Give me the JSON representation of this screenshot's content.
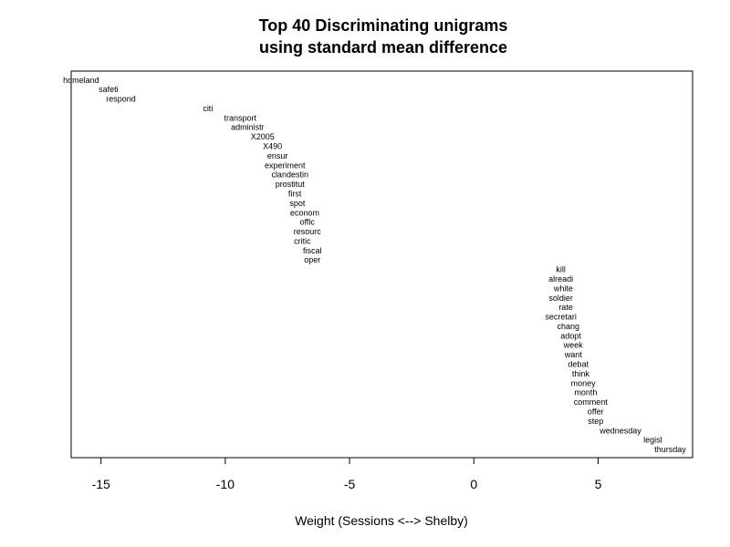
{
  "chart_data": {
    "type": "scatter",
    "title": "Top 40 Discriminating unigrams",
    "subtitle": "using standard mean difference",
    "xlabel": "Weight (Sessions <--> Shelby)",
    "ylabel": "",
    "xlim": [
      -16.2,
      8.8
    ],
    "ylim": [
      0.2,
      41.0
    ],
    "x_ticks": [
      -15,
      -10,
      -5,
      0,
      5
    ],
    "x_tick_labels": [
      "-15",
      "-10",
      "-5",
      "0",
      "5"
    ],
    "grid": false,
    "legend": "none",
    "points": [
      {
        "label": "homeland",
        "x": -15.8,
        "y": 40
      },
      {
        "label": "safeti",
        "x": -14.7,
        "y": 39
      },
      {
        "label": "respond",
        "x": -14.2,
        "y": 38
      },
      {
        "label": "citi",
        "x": -10.7,
        "y": 37
      },
      {
        "label": "transport",
        "x": -9.4,
        "y": 36
      },
      {
        "label": "administr",
        "x": -9.1,
        "y": 35
      },
      {
        "label": "X2005",
        "x": -8.5,
        "y": 34
      },
      {
        "label": "X490",
        "x": -8.1,
        "y": 33
      },
      {
        "label": "ensur",
        "x": -7.9,
        "y": 32
      },
      {
        "label": "experiment",
        "x": -7.6,
        "y": 31
      },
      {
        "label": "clandestin",
        "x": -7.4,
        "y": 30
      },
      {
        "label": "prostitut",
        "x": -7.4,
        "y": 29
      },
      {
        "label": "first",
        "x": -7.2,
        "y": 28
      },
      {
        "label": "spot",
        "x": -7.1,
        "y": 27
      },
      {
        "label": "econom",
        "x": -6.8,
        "y": 26
      },
      {
        "label": "offic",
        "x": -6.7,
        "y": 25
      },
      {
        "label": "resourc",
        "x": -6.7,
        "y": 24
      },
      {
        "label": "critic",
        "x": -6.9,
        "y": 23
      },
      {
        "label": "fiscal",
        "x": -6.5,
        "y": 22
      },
      {
        "label": "oper",
        "x": -6.5,
        "y": 21
      },
      {
        "label": "kill",
        "x": 3.5,
        "y": 20
      },
      {
        "label": "alreadi",
        "x": 3.5,
        "y": 19
      },
      {
        "label": "white",
        "x": 3.6,
        "y": 18
      },
      {
        "label": "soldier",
        "x": 3.5,
        "y": 17
      },
      {
        "label": "rate",
        "x": 3.7,
        "y": 16
      },
      {
        "label": "secretari",
        "x": 3.5,
        "y": 15
      },
      {
        "label": "chang",
        "x": 3.8,
        "y": 14
      },
      {
        "label": "adopt",
        "x": 3.9,
        "y": 13
      },
      {
        "label": "week",
        "x": 4.0,
        "y": 12
      },
      {
        "label": "want",
        "x": 4.0,
        "y": 11
      },
      {
        "label": "debat",
        "x": 4.2,
        "y": 10
      },
      {
        "label": "think",
        "x": 4.3,
        "y": 9
      },
      {
        "label": "money",
        "x": 4.4,
        "y": 8
      },
      {
        "label": "month",
        "x": 4.5,
        "y": 7
      },
      {
        "label": "comment",
        "x": 4.7,
        "y": 6
      },
      {
        "label": "offer",
        "x": 4.9,
        "y": 5
      },
      {
        "label": "step",
        "x": 4.9,
        "y": 4
      },
      {
        "label": "wednesday",
        "x": 5.9,
        "y": 3
      },
      {
        "label": "legisl",
        "x": 7.2,
        "y": 2
      },
      {
        "label": "thursday",
        "x": 7.9,
        "y": 1
      }
    ]
  }
}
